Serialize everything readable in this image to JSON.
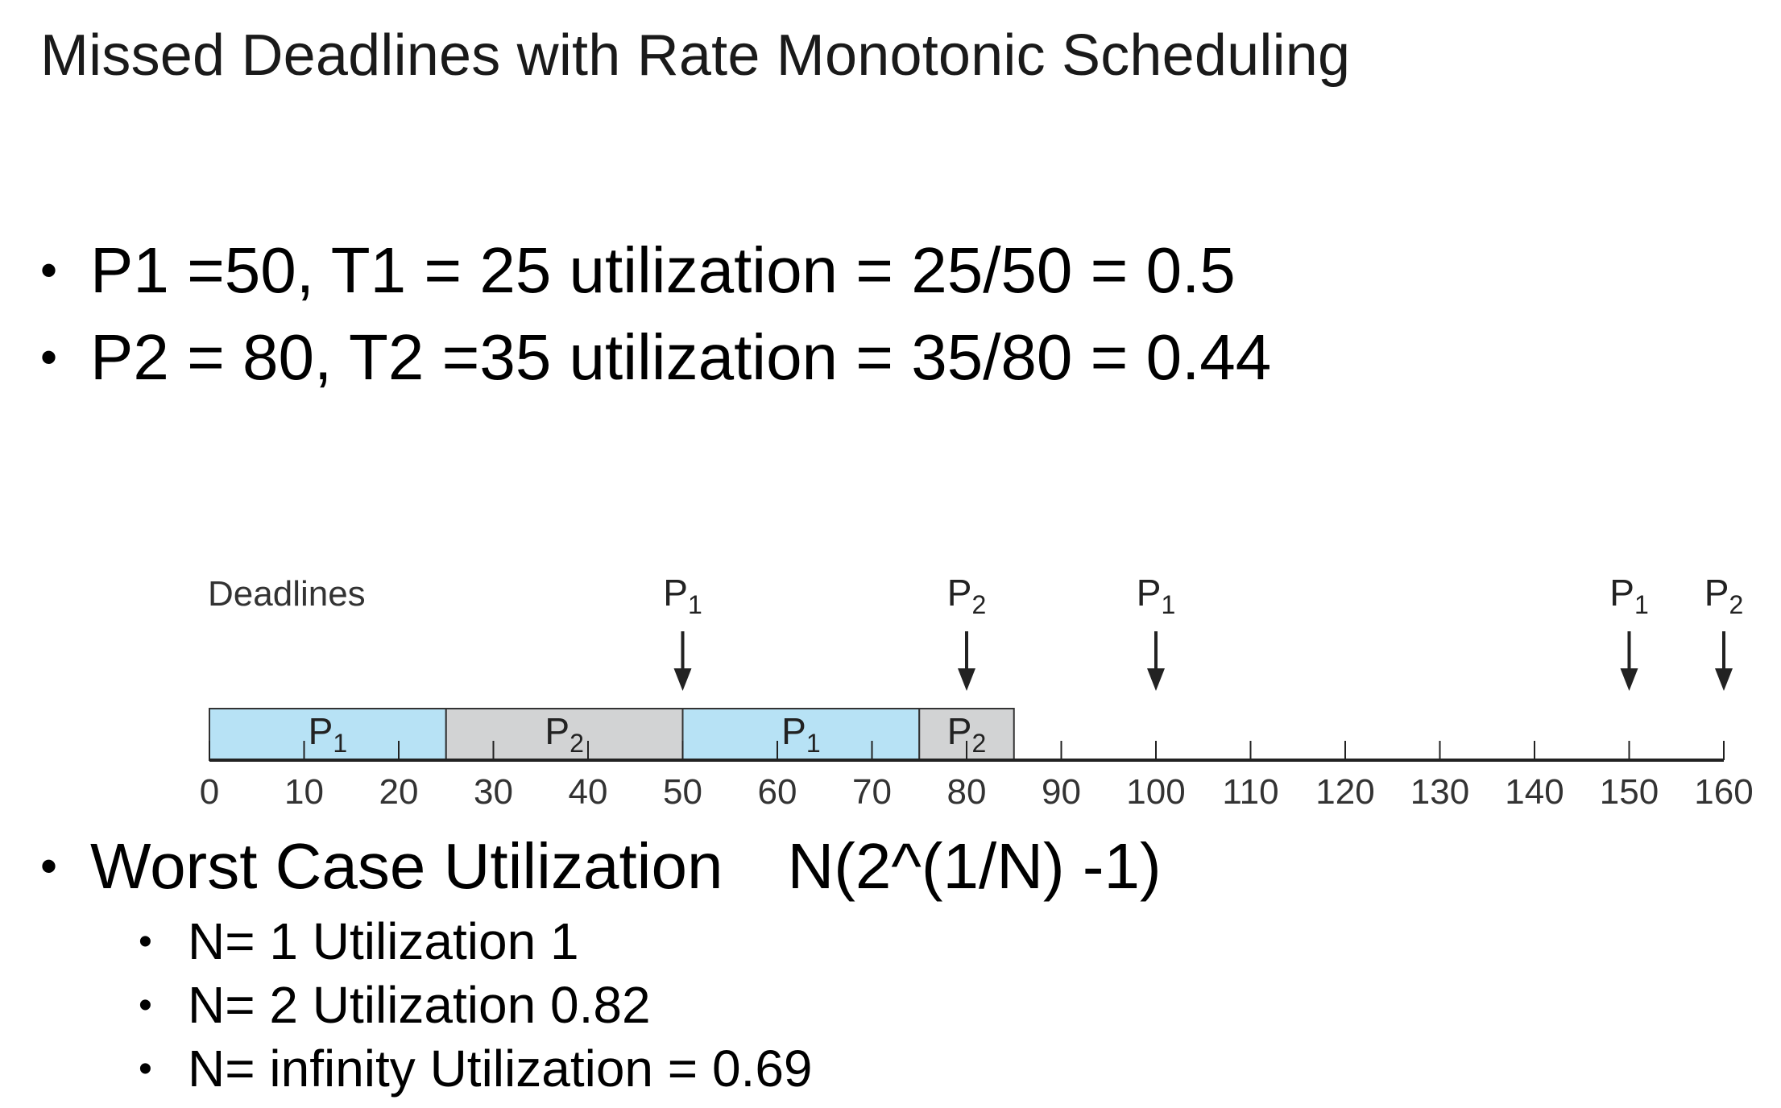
{
  "title": "Missed Deadlines with Rate Monotonic Scheduling",
  "bullets_top": [
    "P1 =50, T1 = 25 utilization = 25/50 = 0.5",
    "P2 = 80, T2 =35 utilization = 35/80 = 0.44"
  ],
  "worst_case": {
    "label": "Worst Case Utilization",
    "formula": "N(2^(1/N) -1)",
    "items": [
      "N= 1 Utilization 1",
      "N= 2 Utilization 0.82",
      "N= infinity Utilization = 0.69"
    ]
  },
  "timeline": {
    "deadlines_label": "Deadlines",
    "axis_min": 0,
    "axis_max": 160,
    "tick_step": 10,
    "tick_labels": [
      "0",
      "10",
      "20",
      "30",
      "40",
      "50",
      "60",
      "70",
      "80",
      "90",
      "100",
      "110",
      "120",
      "130",
      "140",
      "150",
      "160"
    ],
    "segments": [
      {
        "process": "P",
        "sub": "1",
        "start": 0,
        "end": 25,
        "color": "#b7e2f5"
      },
      {
        "process": "P",
        "sub": "2",
        "start": 25,
        "end": 50,
        "color": "#d2d3d4"
      },
      {
        "process": "P",
        "sub": "1",
        "start": 50,
        "end": 75,
        "color": "#b7e2f5"
      },
      {
        "process": "P",
        "sub": "2",
        "start": 75,
        "end": 85,
        "color": "#d2d3d4"
      }
    ],
    "deadlines": [
      {
        "process": "P",
        "sub": "1",
        "time": 50
      },
      {
        "process": "P",
        "sub": "2",
        "time": 80
      },
      {
        "process": "P",
        "sub": "1",
        "time": 100
      },
      {
        "process": "P",
        "sub": "1",
        "time": 150
      },
      {
        "process": "P",
        "sub": "2",
        "time": 160
      }
    ]
  }
}
